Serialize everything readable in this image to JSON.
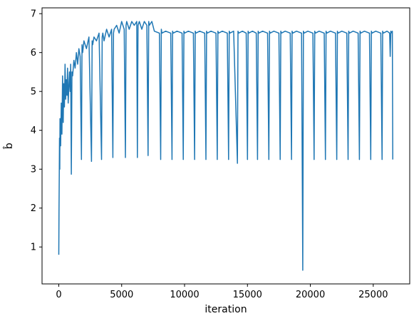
{
  "chart_data": {
    "type": "line",
    "title": "",
    "xlabel": "iteration",
    "ylabel": "b̂",
    "xlim": [
      -1330,
      27900
    ],
    "ylim": [
      0.05,
      7.15
    ],
    "xticks": [
      0,
      5000,
      10000,
      15000,
      20000,
      25000
    ],
    "yticks": [
      1,
      2,
      3,
      4,
      5,
      6,
      7
    ],
    "grid": false,
    "legend": "none",
    "series_color": "#1f77b4",
    "series": [
      {
        "x": [
          0,
          20,
          40,
          60,
          80,
          100,
          150,
          200,
          250,
          300,
          350,
          400,
          450,
          500,
          550,
          600,
          650,
          700,
          750,
          800,
          850,
          900,
          950,
          1000,
          1050,
          1100,
          1200,
          1300,
          1400,
          1500,
          1600,
          1700,
          1800,
          1850,
          1900,
          2000,
          2200,
          2400,
          2600,
          2650,
          2700,
          2800,
          3000,
          3200,
          3400,
          3450,
          3500,
          3600,
          3800,
          4000,
          4200,
          4300,
          4350,
          4400,
          4600,
          4800,
          5000,
          5200,
          5300,
          5350,
          5400,
          5600,
          5800,
          6000,
          6200,
          6250,
          6300,
          6400,
          6600,
          6800,
          7000,
          7100,
          7150,
          7200,
          7400,
          7600,
          8000,
          8100,
          8150,
          8200,
          8500,
          8900,
          9000,
          9050,
          9100,
          9400,
          9800,
          9900,
          9950,
          10000,
          10300,
          10700,
          10800,
          10850,
          10900,
          11200,
          11600,
          11700,
          11750,
          11800,
          12100,
          12500,
          12600,
          12650,
          12700,
          13000,
          13400,
          13500,
          13550,
          13600,
          13900,
          14200,
          14250,
          14300,
          14600,
          14900,
          15000,
          15050,
          15100,
          15400,
          15700,
          15800,
          15850,
          15900,
          16200,
          16600,
          16700,
          16750,
          16800,
          17100,
          17500,
          17600,
          17650,
          17700,
          18000,
          18400,
          18500,
          18550,
          18600,
          18900,
          19300,
          19400,
          19450,
          19500,
          19800,
          20200,
          20300,
          20350,
          20400,
          20700,
          21100,
          21200,
          21250,
          21300,
          21600,
          22000,
          22100,
          22150,
          22200,
          22500,
          22900,
          23000,
          23050,
          23100,
          23400,
          23800,
          23900,
          23950,
          24000,
          24300,
          24700,
          24800,
          24850,
          24900,
          25200,
          25600,
          25700,
          25750,
          25800,
          26100,
          26300,
          26350,
          26400,
          26500,
          26520,
          26550
        ],
        "y": [
          0.8,
          1.9,
          2.9,
          3.8,
          3.0,
          4.3,
          3.6,
          4.7,
          3.9,
          5.4,
          4.2,
          5.2,
          4.6,
          5.7,
          4.8,
          5.3,
          4.9,
          5.6,
          4.7,
          5.1,
          5.5,
          5.0,
          5.7,
          2.87,
          5.5,
          5.4,
          5.8,
          5.6,
          6.0,
          5.7,
          6.1,
          5.9,
          3.25,
          6.2,
          6.0,
          6.3,
          6.1,
          6.4,
          3.2,
          6.3,
          6.2,
          6.4,
          6.3,
          6.5,
          3.25,
          6.4,
          6.5,
          6.3,
          6.6,
          6.4,
          6.6,
          3.3,
          6.5,
          6.6,
          6.7,
          6.5,
          6.8,
          6.6,
          3.3,
          6.7,
          6.8,
          6.6,
          6.8,
          6.7,
          6.8,
          3.3,
          6.7,
          6.8,
          6.6,
          6.8,
          6.7,
          3.35,
          6.8,
          6.7,
          6.8,
          6.55,
          6.5,
          3.25,
          6.6,
          6.5,
          6.55,
          6.5,
          3.25,
          6.55,
          6.5,
          6.55,
          6.5,
          3.25,
          6.55,
          6.5,
          6.55,
          6.5,
          3.25,
          6.55,
          6.5,
          6.55,
          6.5,
          3.25,
          6.55,
          6.5,
          6.55,
          6.5,
          3.25,
          6.55,
          6.5,
          6.55,
          6.5,
          3.25,
          6.55,
          6.5,
          6.55,
          3.15,
          6.55,
          6.5,
          6.55,
          6.5,
          3.25,
          6.55,
          6.5,
          6.55,
          6.5,
          3.25,
          6.55,
          6.5,
          6.55,
          6.5,
          3.25,
          6.55,
          6.5,
          6.55,
          6.5,
          3.25,
          6.55,
          6.5,
          6.55,
          6.5,
          3.25,
          6.55,
          6.5,
          6.55,
          6.5,
          0.4,
          6.55,
          6.5,
          6.55,
          6.5,
          3.25,
          6.55,
          6.5,
          6.55,
          6.5,
          3.25,
          6.55,
          6.5,
          6.55,
          6.5,
          3.25,
          6.55,
          6.5,
          6.55,
          6.5,
          3.25,
          6.55,
          6.5,
          6.55,
          6.5,
          3.25,
          6.55,
          6.5,
          6.55,
          6.5,
          3.25,
          6.55,
          6.5,
          6.55,
          6.5,
          3.25,
          6.55,
          6.5,
          6.55,
          6.5,
          5.9,
          6.55,
          6.5,
          6.55,
          3.25
        ]
      }
    ]
  }
}
